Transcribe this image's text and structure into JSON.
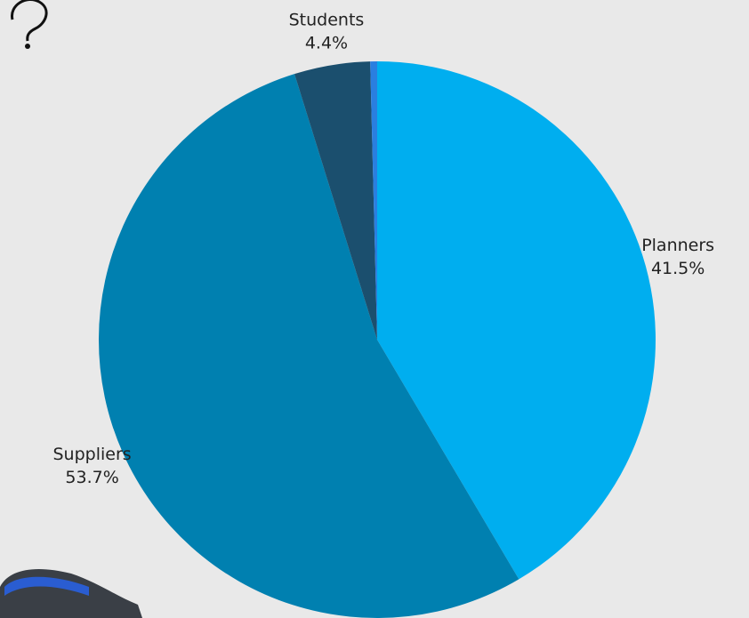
{
  "chart_data": {
    "type": "pie",
    "categories": [
      "Planners",
      "Suppliers",
      "Students",
      null
    ],
    "values": [
      41.5,
      53.7,
      4.4,
      0.4
    ],
    "value_labels": [
      "41.5%",
      "53.7%",
      "4.4%",
      null
    ],
    "colors": [
      "#00aeef",
      "#0080b0",
      "#1b4f6e",
      "#2a7fe0"
    ],
    "start_angle": 0,
    "direction": "clockwise"
  }
}
